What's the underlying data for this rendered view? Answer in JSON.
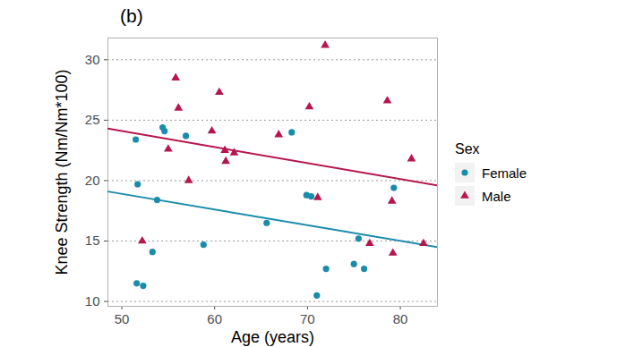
{
  "chart_data": {
    "type": "scatter",
    "title": "(b)",
    "x_label": "Age (years)",
    "y_label": "Knee Strength (Nm/Nm*100)",
    "xlim": [
      48.5,
      84
    ],
    "xticks": [
      50,
      60,
      70,
      80
    ],
    "ylim": [
      9.6,
      31.8
    ],
    "yticks": [
      10,
      15,
      20,
      25,
      30
    ],
    "grid": "y",
    "legend": "right",
    "legend_title": "Sex",
    "series": [
      {
        "name": "Female",
        "color": "#1a8cab",
        "marker": "circle",
        "x": [
          51.5,
          51.7,
          51.6,
          52.3,
          53.3,
          53.8,
          54.4,
          54.6,
          56.9,
          58.8,
          65.6,
          68.3,
          69.9,
          70.4,
          71.0,
          72.0,
          75.0,
          75.5,
          76.1,
          79.3
        ],
        "values": [
          23.4,
          19.7,
          11.5,
          11.3,
          14.1,
          18.4,
          24.4,
          24.1,
          23.7,
          14.7,
          16.5,
          24.0,
          18.8,
          18.7,
          10.5,
          12.7,
          13.1,
          15.2,
          12.7,
          19.4
        ],
        "trend": {
          "x": [
            48.5,
            84
          ],
          "values": [
            19.1,
            14.5
          ]
        }
      },
      {
        "name": "Male",
        "color": "#b5174b",
        "marker": "triangle",
        "x": [
          52.2,
          55.0,
          55.8,
          56.1,
          57.2,
          59.7,
          60.5,
          61.1,
          61.2,
          62.1,
          66.9,
          70.2,
          71.1,
          71.9,
          76.7,
          78.6,
          79.1,
          79.2,
          81.2,
          82.5
        ],
        "values": [
          15.0,
          22.6,
          28.5,
          26.0,
          20.0,
          24.1,
          27.3,
          22.5,
          21.6,
          22.3,
          23.8,
          26.1,
          18.6,
          31.2,
          14.8,
          26.6,
          18.3,
          14.0,
          21.8,
          14.8
        ],
        "trend": {
          "x": [
            48.5,
            84
          ],
          "values": [
            24.3,
            19.6
          ]
        }
      }
    ]
  }
}
